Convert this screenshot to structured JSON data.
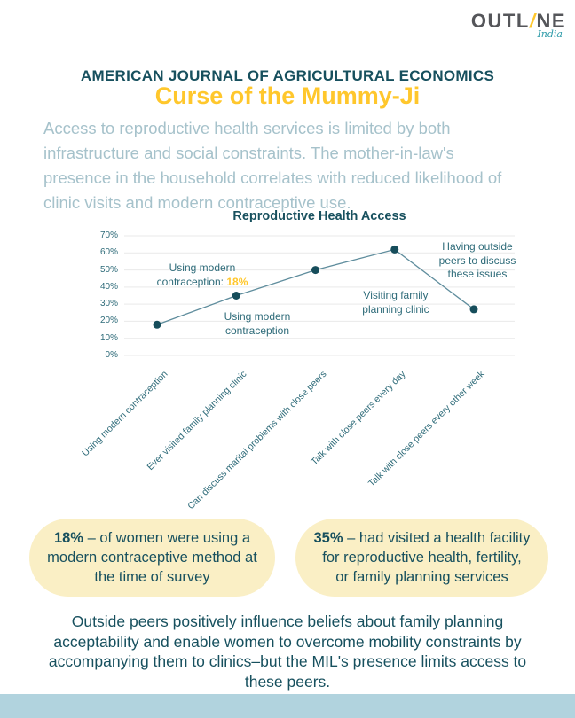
{
  "logo": {
    "part1": "OUTL",
    "slash": "/",
    "part2": "NE",
    "tagline": "India"
  },
  "header": {
    "journal": "AMERICAN JOURNAL OF AGRICULTURAL ECONOMICS",
    "title": "Curse of the Mummy-Ji"
  },
  "intro": "Access to reproductive health services is limited by both\ninfrastructure and social constraints. The mother-in-law's\npresence in the household correlates with reduced likelihood of\nclinic visits and modern contraceptive use.",
  "chart_data": {
    "type": "line",
    "title": "Reproductive Health Access",
    "categories": [
      "Using modern contraception",
      "Ever visited family planning clinic",
      "Can discuss marital problems with close peers",
      "Talk with close peers every day",
      "Talk with close peers every other week"
    ],
    "values": [
      18,
      35,
      50,
      62,
      27
    ],
    "unit": "%",
    "ylim": [
      0,
      70
    ],
    "yticks": [
      "70%",
      "60%",
      "50%",
      "40%",
      "30%",
      "20%",
      "10%",
      "0%"
    ],
    "grid": true,
    "legend": "none",
    "annotations": [
      {
        "text": "Using modern\ncontraception:",
        "highlight": "18%"
      },
      {
        "text": "Using modern\ncontraception"
      },
      {
        "text": "Visiting family\nplanning clinic"
      },
      {
        "text": "Having outside\npeers to discuss\nthese issues"
      }
    ],
    "colors": {
      "line": "#5f8d9d",
      "point": "#164d5b",
      "grid": "#e9e9e9",
      "highlight": "#ffc72c",
      "axis_text": "#2e6b79"
    }
  },
  "stats": [
    {
      "value": "18%",
      "text": "– of women were using a\nmodern contraceptive method at\nthe time of survey"
    },
    {
      "value": "35%",
      "text": "– had visited a health facility\nfor reproductive health, fertility,\nor family planning services"
    }
  ],
  "conclusion": "Outside peers positively influence beliefs about family planning\nacceptability and enable women to overcome mobility constraints by\naccompanying them to clinics–but the MIL's presence limits access to\nthese peers.",
  "colors": {
    "accent_teal": "#17505e",
    "accent_yellow": "#ffc72c",
    "intro_text": "#a6c2cb",
    "stat_bg": "#faefc5",
    "footer": "#b1d3de"
  }
}
